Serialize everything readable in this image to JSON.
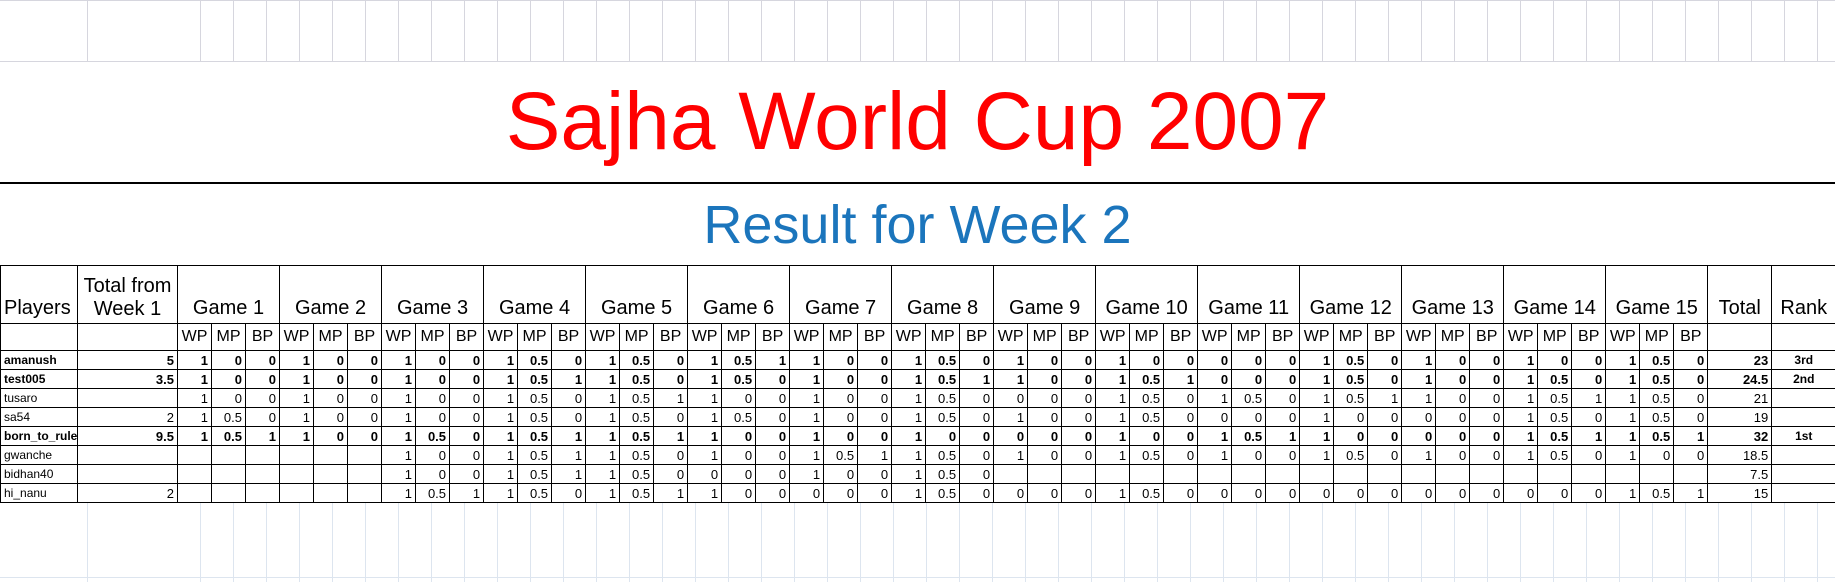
{
  "page": {
    "title": "Sajha World Cup 2007",
    "subtitle": "Result for Week 2",
    "title_color": "#ff0000",
    "subtitle_color": "#1b75bc"
  },
  "table": {
    "players_header": "Players",
    "week1_header": "Total from Week 1",
    "total_header": "Total",
    "rank_header": "Rank",
    "game_headers": [
      "Game 1",
      "Game 2",
      "Game 3",
      "Game 4",
      "Game 5",
      "Game 6",
      "Game 7",
      "Game 8",
      "Game 9",
      "Game 10",
      "Game 11",
      "Game 12",
      "Game 13",
      "Game 14",
      "Game 15"
    ],
    "subheaders": [
      "WP",
      "MP",
      "BP"
    ],
    "rank_colors": {
      "1st": "#ffc000",
      "2nd": "#00b050",
      "3rd": "#c00000"
    },
    "rows": [
      {
        "player": "amanush",
        "color": "#c00000",
        "bold": true,
        "week1": "5",
        "games": [
          [
            "1",
            "0",
            "0"
          ],
          [
            "1",
            "0",
            "0"
          ],
          [
            "1",
            "0",
            "0"
          ],
          [
            "1",
            "0.5",
            "0"
          ],
          [
            "1",
            "0.5",
            "0"
          ],
          [
            "1",
            "0.5",
            "1"
          ],
          [
            "1",
            "0",
            "0"
          ],
          [
            "1",
            "0.5",
            "0"
          ],
          [
            "1",
            "0",
            "0"
          ],
          [
            "1",
            "0",
            "0"
          ],
          [
            "0",
            "0",
            "0"
          ],
          [
            "1",
            "0.5",
            "0"
          ],
          [
            "1",
            "0",
            "0"
          ],
          [
            "1",
            "0",
            "0"
          ],
          [
            "1",
            "0.5",
            "0"
          ]
        ],
        "total": "23",
        "rank": "3rd"
      },
      {
        "player": "test005",
        "color": "#00b050",
        "bold": true,
        "week1": "3.5",
        "games": [
          [
            "1",
            "0",
            "0"
          ],
          [
            "1",
            "0",
            "0"
          ],
          [
            "1",
            "0",
            "0"
          ],
          [
            "1",
            "0.5",
            "1"
          ],
          [
            "1",
            "0.5",
            "0"
          ],
          [
            "1",
            "0.5",
            "0"
          ],
          [
            "1",
            "0",
            "0"
          ],
          [
            "1",
            "0.5",
            "1"
          ],
          [
            "1",
            "0",
            "0"
          ],
          [
            "1",
            "0.5",
            "1"
          ],
          [
            "0",
            "0",
            "0"
          ],
          [
            "1",
            "0.5",
            "0"
          ],
          [
            "1",
            "0",
            "0"
          ],
          [
            "1",
            "0.5",
            "0"
          ],
          [
            "1",
            "0.5",
            "0"
          ]
        ],
        "total": "24.5",
        "rank": "2nd"
      },
      {
        "player": "tusaro",
        "color": "",
        "bold": false,
        "week1": "",
        "games": [
          [
            "1",
            "0",
            "0"
          ],
          [
            "1",
            "0",
            "0"
          ],
          [
            "1",
            "0",
            "0"
          ],
          [
            "1",
            "0.5",
            "0"
          ],
          [
            "1",
            "0.5",
            "1"
          ],
          [
            "1",
            "0",
            "0"
          ],
          [
            "1",
            "0",
            "0"
          ],
          [
            "1",
            "0.5",
            "0"
          ],
          [
            "0",
            "0",
            "0"
          ],
          [
            "1",
            "0.5",
            "0"
          ],
          [
            "1",
            "0.5",
            "0"
          ],
          [
            "1",
            "0.5",
            "1"
          ],
          [
            "1",
            "0",
            "0"
          ],
          [
            "1",
            "0.5",
            "1"
          ],
          [
            "1",
            "0.5",
            "0"
          ]
        ],
        "total": "21",
        "rank": ""
      },
      {
        "player": "sa54",
        "color": "",
        "bold": false,
        "week1": "2",
        "games": [
          [
            "1",
            "0.5",
            "0"
          ],
          [
            "1",
            "0",
            "0"
          ],
          [
            "1",
            "0",
            "0"
          ],
          [
            "1",
            "0.5",
            "0"
          ],
          [
            "1",
            "0.5",
            "0"
          ],
          [
            "1",
            "0.5",
            "0"
          ],
          [
            "1",
            "0",
            "0"
          ],
          [
            "1",
            "0.5",
            "0"
          ],
          [
            "1",
            "0",
            "0"
          ],
          [
            "1",
            "0.5",
            "0"
          ],
          [
            "0",
            "0",
            "0"
          ],
          [
            "1",
            "0",
            "0"
          ],
          [
            "0",
            "0",
            "0"
          ],
          [
            "1",
            "0.5",
            "0"
          ],
          [
            "1",
            "0.5",
            "0"
          ]
        ],
        "total": "19",
        "rank": ""
      },
      {
        "player": "born_to_rule",
        "color": "#ffc000",
        "bold": true,
        "week1": "9.5",
        "games": [
          [
            "1",
            "0.5",
            "1"
          ],
          [
            "1",
            "0",
            "0"
          ],
          [
            "1",
            "0.5",
            "0"
          ],
          [
            "1",
            "0.5",
            "1"
          ],
          [
            "1",
            "0.5",
            "1"
          ],
          [
            "1",
            "0",
            "0"
          ],
          [
            "1",
            "0",
            "0"
          ],
          [
            "1",
            "0",
            "0"
          ],
          [
            "0",
            "0",
            "0"
          ],
          [
            "1",
            "0",
            "0"
          ],
          [
            "1",
            "0.5",
            "1"
          ],
          [
            "1",
            "0",
            "0"
          ],
          [
            "0",
            "0",
            "0"
          ],
          [
            "1",
            "0.5",
            "1"
          ],
          [
            "1",
            "0.5",
            "1"
          ]
        ],
        "total": "32",
        "rank": "1st"
      },
      {
        "player": "gwanche",
        "color": "",
        "bold": false,
        "week1": "",
        "games": [
          [
            "",
            "",
            ""
          ],
          [
            "",
            "",
            ""
          ],
          [
            "1",
            "0",
            "0"
          ],
          [
            "1",
            "0.5",
            "1"
          ],
          [
            "1",
            "0.5",
            "0"
          ],
          [
            "1",
            "0",
            "0"
          ],
          [
            "1",
            "0.5",
            "1"
          ],
          [
            "1",
            "0.5",
            "0"
          ],
          [
            "1",
            "0",
            "0"
          ],
          [
            "1",
            "0.5",
            "0"
          ],
          [
            "1",
            "0",
            "0"
          ],
          [
            "1",
            "0.5",
            "0"
          ],
          [
            "1",
            "0",
            "0"
          ],
          [
            "1",
            "0.5",
            "0"
          ],
          [
            "1",
            "0",
            "0"
          ]
        ],
        "total": "18.5",
        "rank": ""
      },
      {
        "player": "bidhan40",
        "color": "",
        "bold": false,
        "week1": "",
        "games": [
          [
            "",
            "",
            ""
          ],
          [
            "",
            "",
            ""
          ],
          [
            "1",
            "0",
            "0"
          ],
          [
            "1",
            "0.5",
            "1"
          ],
          [
            "1",
            "0.5",
            "0"
          ],
          [
            "0",
            "0",
            "0"
          ],
          [
            "1",
            "0",
            "0"
          ],
          [
            "1",
            "0.5",
            "0"
          ],
          [
            "",
            "",
            ""
          ],
          [
            "",
            "",
            ""
          ],
          [
            "",
            "",
            ""
          ],
          [
            "",
            "",
            ""
          ],
          [
            "",
            "",
            ""
          ],
          [
            "",
            "",
            ""
          ],
          [
            "",
            "",
            ""
          ]
        ],
        "total": "7.5",
        "rank": ""
      },
      {
        "player": "hi_nanu",
        "color": "",
        "bold": false,
        "week1": "2",
        "games": [
          [
            "",
            "",
            ""
          ],
          [
            "",
            "",
            ""
          ],
          [
            "1",
            "0.5",
            "1"
          ],
          [
            "1",
            "0.5",
            "0"
          ],
          [
            "1",
            "0.5",
            "1"
          ],
          [
            "1",
            "0",
            "0"
          ],
          [
            "0",
            "0",
            "0"
          ],
          [
            "1",
            "0.5",
            "0"
          ],
          [
            "0",
            "0",
            "0"
          ],
          [
            "1",
            "0.5",
            "0"
          ],
          [
            "0",
            "0",
            "0"
          ],
          [
            "0",
            "0",
            "0"
          ],
          [
            "0",
            "0",
            "0"
          ],
          [
            "0",
            "0",
            "0"
          ],
          [
            "1",
            "0.5",
            "1"
          ]
        ],
        "total": "15",
        "rank": ""
      }
    ]
  }
}
